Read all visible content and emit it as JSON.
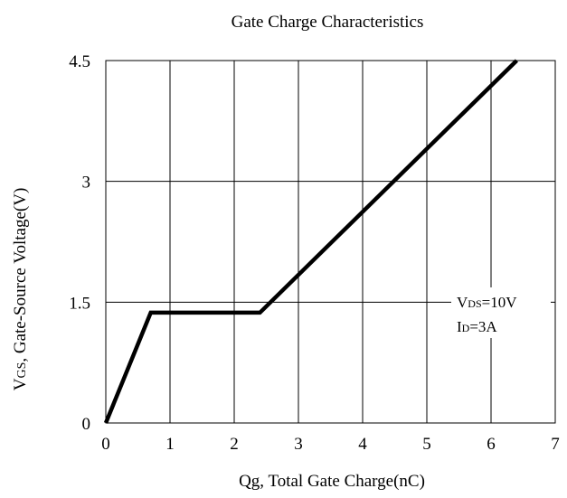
{
  "chart_data": {
    "type": "line",
    "title": "Gate Charge Characteristics",
    "xlabel": "Qg, Total Gate Charge(nC)",
    "ylabel": {
      "prefix": "V",
      "sub": "GS",
      "rest": ", Gate-Source Voltage(V)"
    },
    "xlim": [
      0,
      7
    ],
    "ylim": [
      0,
      4.5
    ],
    "x_ticks": [
      0,
      1,
      2,
      3,
      4,
      5,
      6,
      7
    ],
    "x_tick_labels": [
      "0",
      "1",
      "2",
      "3",
      "4",
      "5",
      "6",
      "7"
    ],
    "y_ticks": [
      0,
      1.5,
      3,
      4.5
    ],
    "y_tick_labels": [
      "0",
      "1.5",
      "3",
      "4.5"
    ],
    "grid": true,
    "series": [
      {
        "x": [
          0,
          0.7,
          2.4,
          6.4
        ],
        "y": [
          0,
          1.37,
          1.37,
          4.5
        ],
        "color": "#000000"
      }
    ],
    "annotations": [
      {
        "prefix": "V",
        "sub": "DS",
        "rest": "=10V"
      },
      {
        "prefix": "I",
        "sub": "D",
        "rest": "=3A"
      }
    ]
  }
}
